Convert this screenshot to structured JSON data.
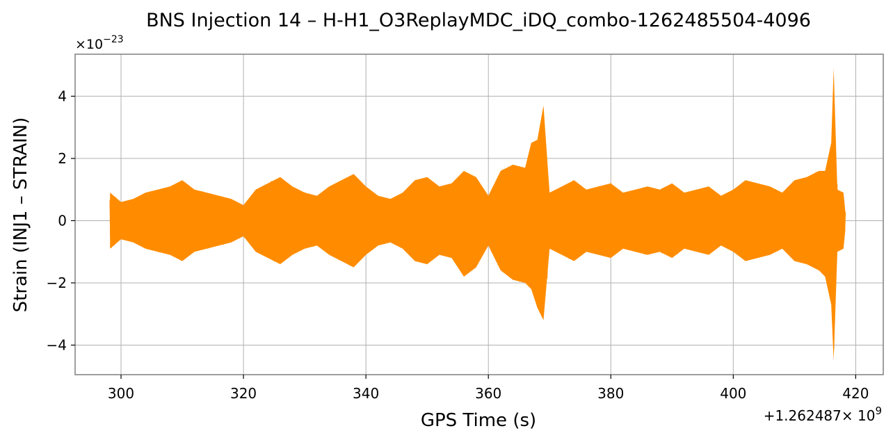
{
  "chart_data": {
    "type": "line",
    "title": "BNS Injection 14 – H-H1_O3ReplayMDC_iDQ_combo-1262485504-4096",
    "xlabel": "GPS Time (s)",
    "ylabel": "Strain (INJ1 – STRAIN)",
    "x_offset_label": "+1.262487",
    "x_offset_exponent_base": "× 10",
    "x_offset_exponent": "9",
    "y_scale_label": "×10",
    "y_scale_exponent": "−23",
    "xlim": [
      292.5,
      424.5
    ],
    "ylim": [
      -4.95,
      5.35
    ],
    "xticks": [
      300,
      320,
      340,
      360,
      380,
      400,
      420
    ],
    "xtick_labels": [
      "300",
      "320",
      "340",
      "360",
      "380",
      "400",
      "420"
    ],
    "yticks": [
      -4,
      -2,
      0,
      2,
      4
    ],
    "ytick_labels": [
      "−4",
      "−2",
      "0",
      "2",
      "4"
    ],
    "grid": true,
    "series": [
      {
        "color": "#ff8c00",
        "x": [
          298.2,
          300,
          302,
          304,
          306,
          308,
          310,
          312,
          314,
          316,
          318,
          320,
          322,
          324,
          326,
          328,
          330,
          332,
          334,
          336,
          338,
          340,
          342,
          344,
          346,
          348,
          350,
          352,
          354,
          356,
          358,
          360,
          362,
          364,
          366,
          367,
          368,
          369,
          370,
          372,
          374,
          376,
          378,
          380,
          382,
          384,
          386,
          388,
          390,
          392,
          394,
          396,
          398,
          400,
          402,
          404,
          406,
          408,
          410,
          412,
          414,
          415,
          416,
          416.4,
          417,
          418,
          418.3
        ],
        "y_upper": [
          0.9,
          0.6,
          0.7,
          0.9,
          1.0,
          1.1,
          1.3,
          1.0,
          0.9,
          0.8,
          0.7,
          0.5,
          1.0,
          1.2,
          1.4,
          1.1,
          0.9,
          0.8,
          1.1,
          1.3,
          1.5,
          1.1,
          0.8,
          0.7,
          0.9,
          1.3,
          1.4,
          1.1,
          1.2,
          1.6,
          1.4,
          0.8,
          1.6,
          1.8,
          1.7,
          2.5,
          2.6,
          3.7,
          0.9,
          1.1,
          1.3,
          1.0,
          1.1,
          1.2,
          0.9,
          1.0,
          1.1,
          1.0,
          1.2,
          0.9,
          1.0,
          1.1,
          0.8,
          1.0,
          1.3,
          1.2,
          1.1,
          0.9,
          1.3,
          1.4,
          1.6,
          1.6,
          2.5,
          4.9,
          1.0,
          0.9,
          0.3
        ],
        "y_lower": [
          -0.9,
          -0.6,
          -0.7,
          -0.9,
          -1.0,
          -1.1,
          -1.3,
          -1.0,
          -0.9,
          -0.8,
          -0.7,
          -0.5,
          -1.0,
          -1.2,
          -1.4,
          -1.1,
          -0.9,
          -0.8,
          -1.1,
          -1.3,
          -1.5,
          -1.1,
          -0.8,
          -0.7,
          -0.9,
          -1.3,
          -1.4,
          -1.1,
          -1.2,
          -1.8,
          -1.5,
          -0.8,
          -1.6,
          -1.9,
          -2.0,
          -2.2,
          -2.8,
          -3.2,
          -0.9,
          -1.1,
          -1.3,
          -1.0,
          -1.1,
          -1.2,
          -0.9,
          -1.0,
          -1.1,
          -1.0,
          -1.2,
          -0.9,
          -1.0,
          -1.1,
          -0.8,
          -1.0,
          -1.3,
          -1.2,
          -1.1,
          -0.9,
          -1.3,
          -1.4,
          -1.6,
          -1.8,
          -2.7,
          -4.5,
          -1.0,
          -0.9,
          -0.3
        ]
      }
    ]
  }
}
